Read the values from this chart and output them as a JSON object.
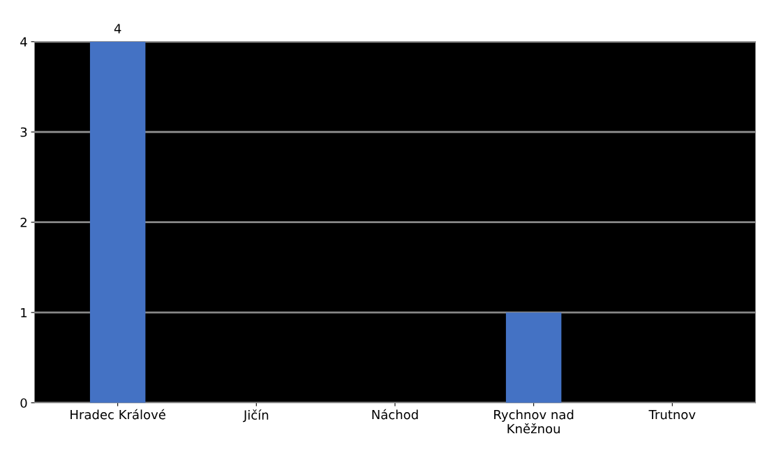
{
  "chart_data": {
    "type": "bar",
    "categories": [
      "Hradec Králové",
      "Jičín",
      "Náchod",
      "Rychnov nad\nKněžnou",
      "Trutnov"
    ],
    "values": [
      4,
      0,
      0,
      1,
      0
    ],
    "color": "#4472c4",
    "value_labels": [
      "4",
      null,
      null,
      null,
      null
    ],
    "ylim": [
      0,
      4
    ],
    "yticks": [
      0,
      1,
      2,
      3,
      4
    ],
    "grid": "y"
  }
}
